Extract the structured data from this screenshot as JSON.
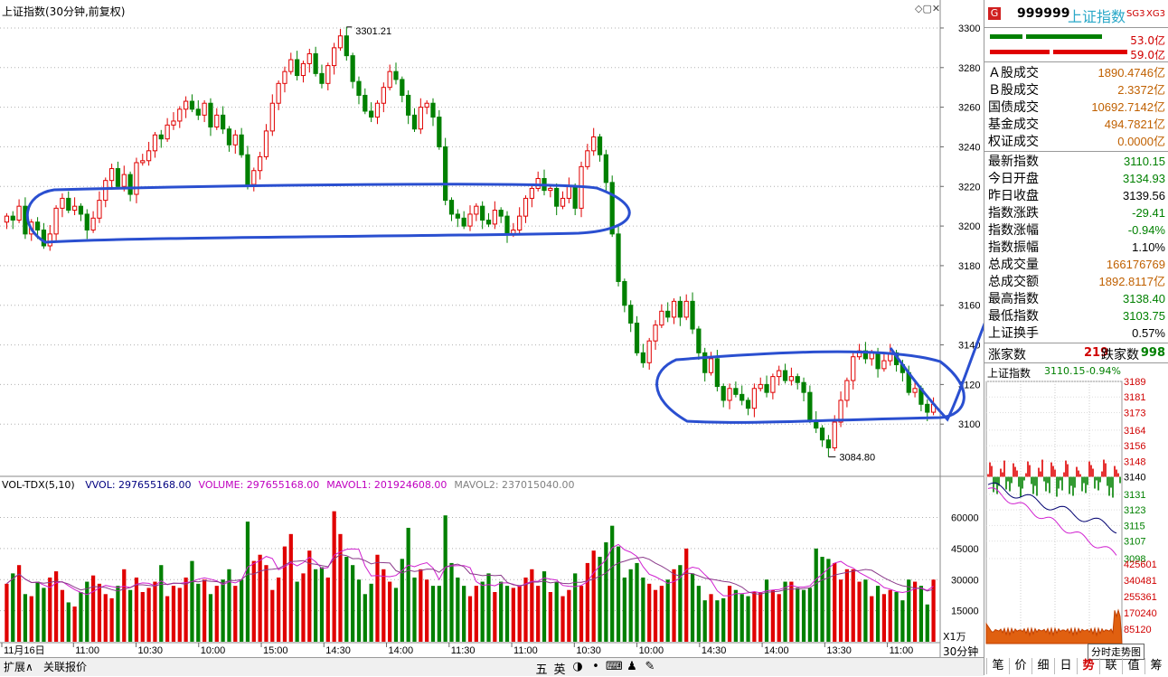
{
  "header": {
    "title": "上证指数(30分钟,前复权)",
    "vol_title": "VOL-TDX(5,10)",
    "vol_items": [
      {
        "label": "VVOL: 297655168.00",
        "color": "#000080"
      },
      {
        "label": "VOLUME: 297655168.00",
        "color": "#c000c0"
      },
      {
        "label": "MAVOL1: 201924608.00",
        "color": "#c000c0"
      },
      {
        "label": "MAVOL2: 237015040.00",
        "color": "#808080"
      }
    ],
    "scale_label": "X1万",
    "period_label": "30分钟"
  },
  "chart_data": [
    {
      "type": "candlestick",
      "title": "上证指数(30分钟,前复权)",
      "y_ticks": [
        3100,
        3120,
        3140,
        3160,
        3180,
        3200,
        3220,
        3240,
        3260,
        3280,
        3300
      ],
      "ylim": [
        3075,
        3305
      ],
      "x_ticks": [
        "11月16日",
        "11:00",
        "10:30",
        "10:00",
        "15:00",
        "14:30",
        "14:00",
        "11:30",
        "11:00",
        "10:30",
        "10:00",
        "14:30",
        "14:00",
        "13:30",
        "11:00"
      ],
      "annotations": [
        {
          "text": "3301.21",
          "type": "high"
        },
        {
          "text": "3084.80",
          "type": "low"
        }
      ],
      "closes": [
        3205,
        3203,
        3210,
        3196,
        3202,
        3198,
        3190,
        3196,
        3209,
        3214,
        3208,
        3210,
        3206,
        3198,
        3204,
        3213,
        3223,
        3229,
        3220,
        3226,
        3216,
        3232,
        3233,
        3238,
        3246,
        3244,
        3251,
        3253,
        3259,
        3263,
        3259,
        3256,
        3262,
        3250,
        3256,
        3249,
        3241,
        3246,
        3236,
        3221,
        3228,
        3235,
        3248,
        3262,
        3272,
        3278,
        3284,
        3276,
        3282,
        3287,
        3277,
        3272,
        3281,
        3290,
        3296,
        3286,
        3273,
        3266,
        3258,
        3255,
        3262,
        3270,
        3278,
        3274,
        3266,
        3256,
        3249,
        3260,
        3262,
        3255,
        3240,
        3213,
        3206,
        3204,
        3200,
        3206,
        3210,
        3203,
        3201,
        3208,
        3205,
        3196,
        3198,
        3205,
        3214,
        3219,
        3224,
        3218,
        3219,
        3210,
        3214,
        3220,
        3209,
        3230,
        3238,
        3245,
        3236,
        3222,
        3196,
        3172,
        3160,
        3151,
        3136,
        3131,
        3142,
        3150,
        3157,
        3154,
        3162,
        3154,
        3162,
        3148,
        3136,
        3126,
        3133,
        3119,
        3112,
        3118,
        3115,
        3112,
        3108,
        3118,
        3120,
        3116,
        3124,
        3127,
        3122,
        3124,
        3121,
        3116,
        3102,
        3098,
        3092,
        3088,
        3101,
        3112,
        3122,
        3134,
        3137,
        3133,
        3136,
        3128,
        3132,
        3136,
        3130,
        3126,
        3116,
        3118,
        3110,
        3106,
        3110
      ],
      "volume_ticks": [
        15000,
        30000,
        45000,
        60000
      ],
      "volume_max": 72000,
      "volumes": [
        28000,
        33000,
        37000,
        23000,
        22000,
        29000,
        26000,
        31000,
        34000,
        25000,
        19000,
        17000,
        24000,
        29000,
        32000,
        28000,
        23000,
        21000,
        27000,
        35000,
        25000,
        31000,
        24000,
        26000,
        29000,
        37000,
        22000,
        27000,
        26000,
        31000,
        39000,
        28000,
        30000,
        23000,
        27000,
        30000,
        35000,
        27000,
        30000,
        58000,
        39000,
        42000,
        37000,
        25000,
        31000,
        46000,
        52000,
        29000,
        33000,
        44000,
        35000,
        36000,
        31000,
        63000,
        52000,
        41000,
        37000,
        30000,
        23000,
        28000,
        42000,
        35000,
        29000,
        26000,
        40000,
        55000,
        31000,
        35000,
        30000,
        27000,
        27000,
        61000,
        38000,
        31000,
        27000,
        22000,
        27000,
        29000,
        33000,
        24000,
        29000,
        27000,
        26000,
        27000,
        31000,
        35000,
        27000,
        34000,
        24000,
        29000,
        22000,
        25000,
        33000,
        27000,
        38000,
        44000,
        41000,
        48000,
        56000,
        46000,
        31000,
        35000,
        38000,
        31000,
        28000,
        25000,
        27000,
        30000,
        35000,
        37000,
        45000,
        33000,
        27000,
        20000,
        23000,
        20000,
        21000,
        27000,
        25000,
        23000,
        22000,
        24000,
        24000,
        30000,
        25000,
        23000,
        29000,
        29000,
        26000,
        25000,
        26000,
        45000,
        41000,
        40000,
        38000,
        30000,
        35000,
        35000,
        29000,
        30000,
        22000,
        27000,
        23000,
        25000,
        24000,
        20000,
        30000,
        29000,
        27000,
        18000,
        30000
      ]
    },
    {
      "type": "line",
      "title": "上证指数",
      "value_label": "3110.15",
      "change_label": "-0.94%",
      "y_ticks": [
        3189,
        3181,
        3173,
        3164,
        3156,
        3148,
        3140,
        3131,
        3123,
        3115,
        3107,
        3098
      ],
      "volume_ticks": [
        425601,
        340481,
        255361,
        170240,
        85120
      ],
      "footer_label": "分时走势图"
    }
  ],
  "side": {
    "badge": "G",
    "code": "999999",
    "name": "上证指数",
    "tags": [
      "SG3",
      "XG3"
    ],
    "bars": [
      {
        "value": "53.0亿",
        "color": "#008000"
      },
      {
        "value": "59.0亿",
        "color": "#e00000"
      }
    ],
    "turnover": [
      {
        "label": "Ａ股成交",
        "value": "1890.4746亿"
      },
      {
        "label": "Ｂ股成交",
        "value": "2.3372亿"
      },
      {
        "label": "国债成交",
        "value": "10692.7142亿"
      },
      {
        "label": "基金成交",
        "value": "494.7821亿"
      },
      {
        "label": "权证成交",
        "value": "0.0000亿"
      }
    ],
    "stats": [
      {
        "label": "最新指数",
        "value": "3110.15",
        "color": "green"
      },
      {
        "label": "今日开盘",
        "value": "3134.93",
        "color": "green"
      },
      {
        "label": "昨日收盘",
        "value": "3139.56",
        "color": "blk"
      },
      {
        "label": "指数涨跌",
        "value": "-29.41",
        "color": "green"
      },
      {
        "label": "指数涨幅",
        "value": "-0.94%",
        "color": "green"
      },
      {
        "label": "指数振幅",
        "value": "1.10%",
        "color": "blk"
      },
      {
        "label": "总成交量",
        "value": "166176769",
        "color": "brown"
      },
      {
        "label": "总成交额",
        "value": "1892.8117亿",
        "color": "brown"
      },
      {
        "label": "最高指数",
        "value": "3138.40",
        "color": "green"
      },
      {
        "label": "最低指数",
        "value": "3103.75",
        "color": "green"
      },
      {
        "label": "上证换手",
        "value": "0.57%",
        "color": "blk"
      }
    ],
    "rise_label": "涨家数",
    "rise_value": "219",
    "fall_label": "跌家数",
    "fall_value": "998"
  },
  "bottom": {
    "left_tabs": [
      "扩展∧",
      "关联报价"
    ],
    "tools": [
      "五",
      "英",
      "◑",
      "•",
      "⌨",
      "♟",
      "✎"
    ],
    "period_tabs": [
      "笔",
      "价",
      "细",
      "日",
      "势",
      "联",
      "值",
      "筹"
    ],
    "active_period": "势"
  }
}
